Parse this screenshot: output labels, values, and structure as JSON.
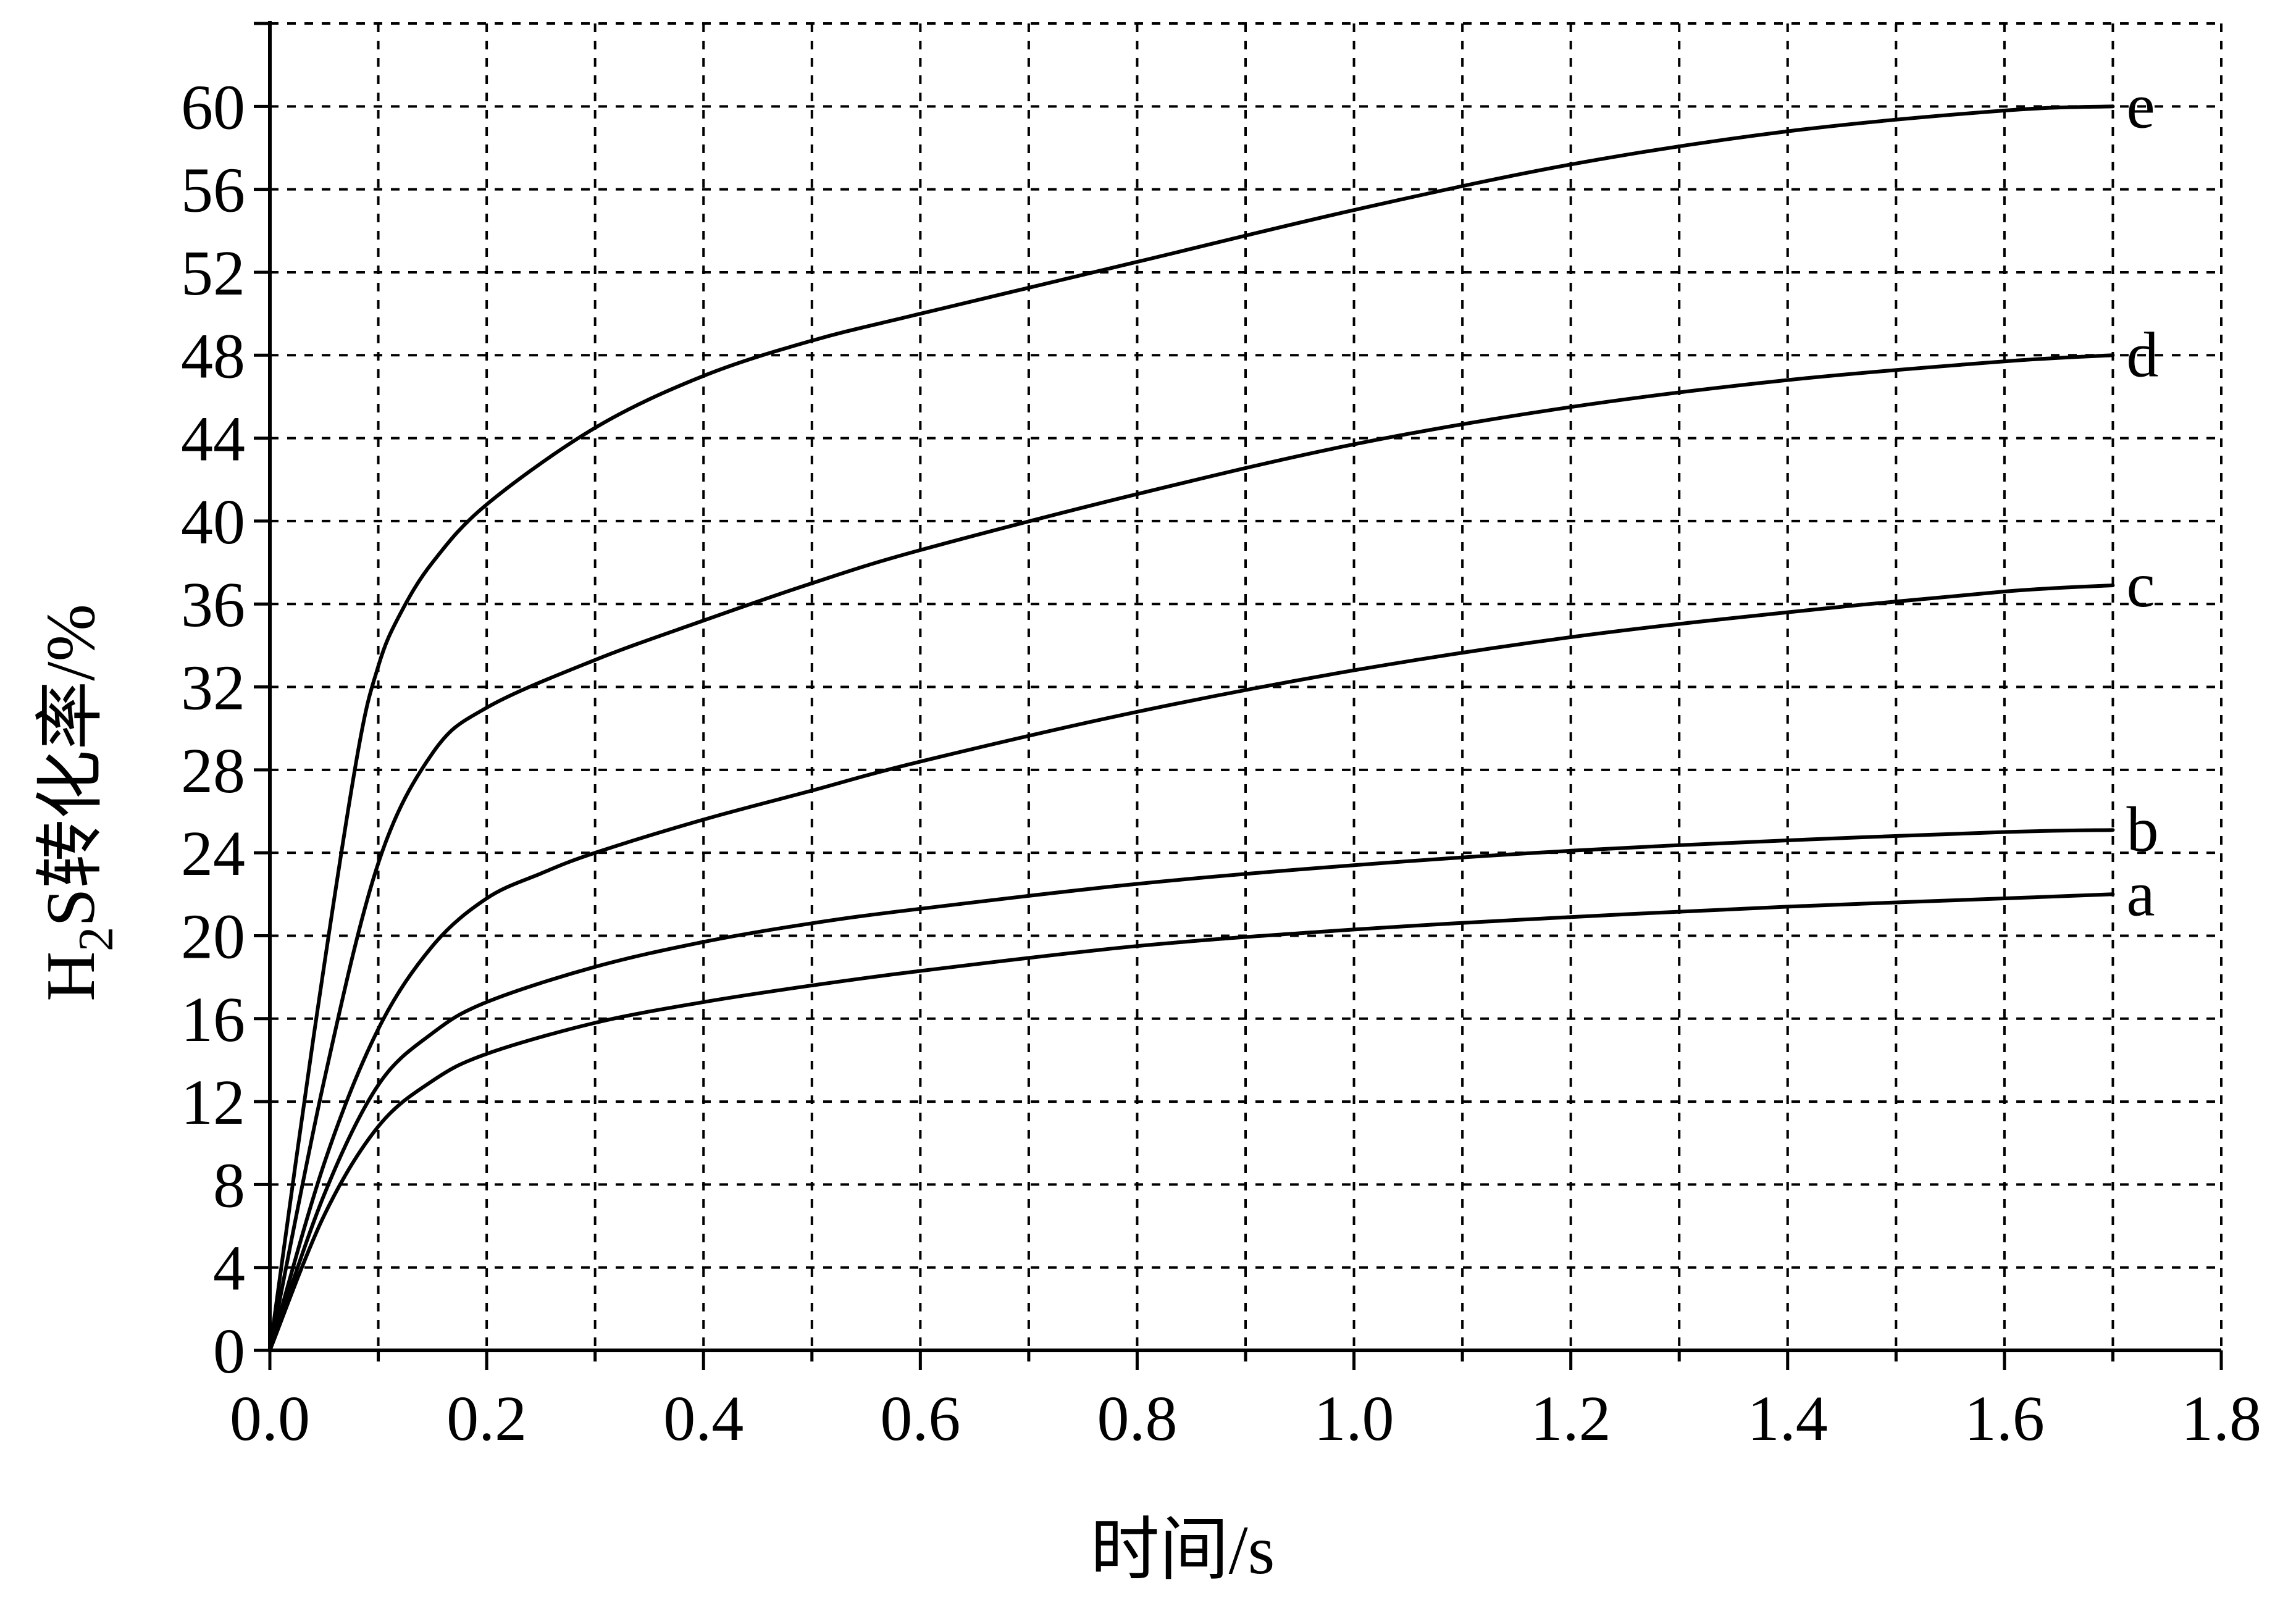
{
  "chart_data": {
    "type": "line",
    "xlabel": "时间/s",
    "ylabel": "H2S转化率/%",
    "ylabel_parts": {
      "pre": "H",
      "sub": "2",
      "post": "S转化率/%"
    },
    "xlim": [
      0,
      1.8
    ],
    "ylim": [
      0,
      64
    ],
    "x_ticks": [
      "0.0",
      "0.2",
      "0.4",
      "0.6",
      "0.8",
      "1.0",
      "1.2",
      "1.4",
      "1.6",
      "1.8"
    ],
    "y_ticks": [
      "0",
      "4",
      "8",
      "12",
      "16",
      "20",
      "24",
      "28",
      "32",
      "36",
      "40",
      "44",
      "48",
      "52",
      "56",
      "60"
    ],
    "grid": true,
    "series": [
      {
        "name": "a",
        "x": [
          0,
          0.05,
          0.1,
          0.15,
          0.2,
          0.3,
          0.4,
          0.5,
          0.6,
          0.8,
          1.0,
          1.2,
          1.4,
          1.6,
          1.7
        ],
        "y": [
          0,
          6.5,
          10.8,
          13.0,
          14.3,
          15.8,
          16.8,
          17.6,
          18.3,
          19.5,
          20.3,
          20.9,
          21.4,
          21.8,
          22.0
        ]
      },
      {
        "name": "b",
        "x": [
          0,
          0.05,
          0.1,
          0.15,
          0.2,
          0.3,
          0.4,
          0.5,
          0.6,
          0.8,
          1.0,
          1.2,
          1.4,
          1.6,
          1.7
        ],
        "y": [
          0,
          7.5,
          12.8,
          15.3,
          16.8,
          18.5,
          19.7,
          20.6,
          21.3,
          22.5,
          23.4,
          24.1,
          24.6,
          25.0,
          25.1
        ]
      },
      {
        "name": "c",
        "x": [
          0,
          0.05,
          0.1,
          0.15,
          0.2,
          0.25,
          0.3,
          0.4,
          0.5,
          0.6,
          0.8,
          1.0,
          1.2,
          1.4,
          1.6,
          1.7
        ],
        "y": [
          0,
          9.0,
          15.5,
          19.5,
          21.8,
          23.0,
          24.0,
          25.6,
          27.0,
          28.4,
          30.8,
          32.8,
          34.4,
          35.6,
          36.6,
          36.9
        ]
      },
      {
        "name": "d",
        "x": [
          0,
          0.05,
          0.1,
          0.15,
          0.2,
          0.3,
          0.4,
          0.5,
          0.6,
          0.8,
          1.0,
          1.2,
          1.4,
          1.6,
          1.7
        ],
        "y": [
          0,
          13.0,
          23.5,
          28.8,
          31.0,
          33.3,
          35.2,
          37.0,
          38.6,
          41.3,
          43.7,
          45.5,
          46.8,
          47.7,
          48.0
        ]
      },
      {
        "name": "e",
        "x": [
          0,
          0.04,
          0.08,
          0.1,
          0.12,
          0.15,
          0.2,
          0.3,
          0.4,
          0.5,
          0.6,
          0.8,
          1.0,
          1.2,
          1.4,
          1.6,
          1.7
        ],
        "y": [
          0,
          15.0,
          28.5,
          33.0,
          35.5,
          38.0,
          40.8,
          44.5,
          47.0,
          48.7,
          50.0,
          52.5,
          55.0,
          57.2,
          58.8,
          59.8,
          60.0
        ]
      }
    ]
  }
}
